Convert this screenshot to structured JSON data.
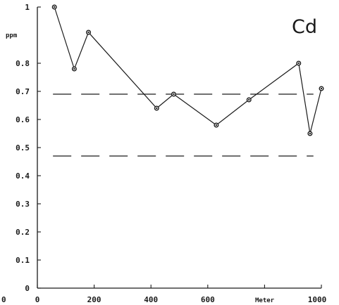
{
  "chart_data": {
    "type": "line",
    "element": "Cd",
    "ylabel": "ppm",
    "xlabel": "Meter",
    "xlim": [
      0,
      1000
    ],
    "ylim": [
      0,
      1
    ],
    "x_ticks": [
      {
        "value": 0,
        "label": "0"
      },
      {
        "value": 200,
        "label": "200"
      },
      {
        "value": 400,
        "label": "400"
      },
      {
        "value": 600,
        "label": "600"
      },
      {
        "value": 1000,
        "label": "1000"
      }
    ],
    "y_ticks": [
      {
        "value": 0,
        "label": "0"
      },
      {
        "value": 0.1,
        "label": "0.1"
      },
      {
        "value": 0.2,
        "label": "0.2"
      },
      {
        "value": 0.3,
        "label": "0.3"
      },
      {
        "value": 0.4,
        "label": "0.4"
      },
      {
        "value": 0.5,
        "label": "0.5"
      },
      {
        "value": 0.6,
        "label": "0.6"
      },
      {
        "value": 0.7,
        "label": "0.7"
      },
      {
        "value": 0.8,
        "label": "0.8"
      },
      {
        "value": 1,
        "label": "1"
      }
    ],
    "corner_label": "0",
    "series": [
      {
        "x": [
          60,
          130,
          180,
          420,
          480,
          630,
          745,
          920,
          960,
          1000
        ],
        "y": [
          1.0,
          0.78,
          0.91,
          0.64,
          0.69,
          0.58,
          0.67,
          0.8,
          0.55,
          0.71
        ]
      }
    ],
    "reference_lines": [
      0.69,
      0.47
    ],
    "grid": false,
    "colors": {
      "line": "#1a1a1a",
      "background": "#ffffff"
    }
  }
}
